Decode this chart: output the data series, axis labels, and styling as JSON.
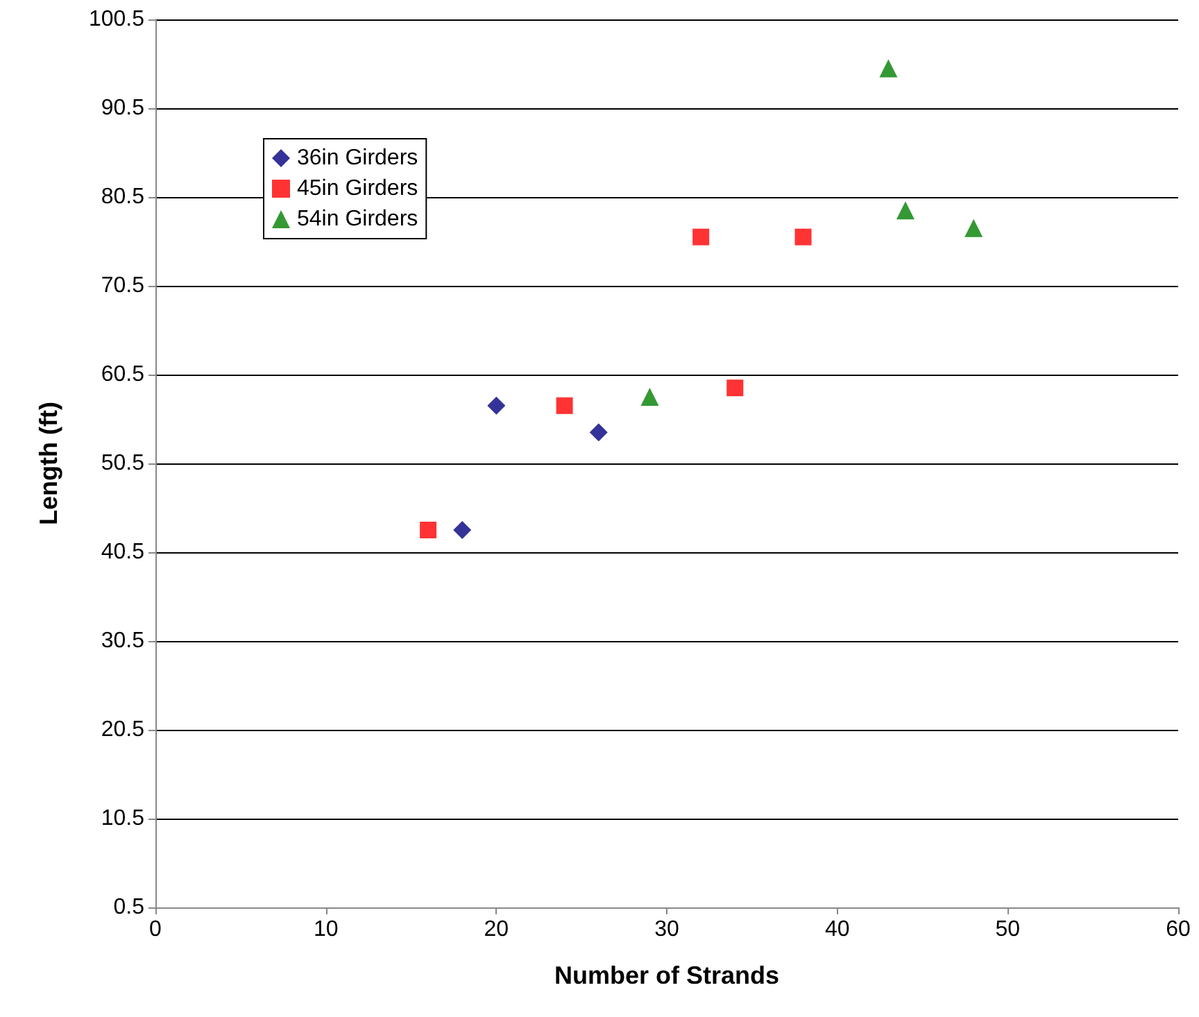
{
  "chart_data": {
    "type": "scatter",
    "xlabel": "Number of Strands",
    "ylabel": "Length (ft)",
    "xlim": [
      0,
      60
    ],
    "xticks": [
      0,
      10,
      20,
      30,
      40,
      50,
      60
    ],
    "ylim": [
      0.5,
      100.5
    ],
    "yticks": [
      0.5,
      10.5,
      20.5,
      30.5,
      40.5,
      50.5,
      60.5,
      70.5,
      80.5,
      90.5,
      100.5
    ],
    "grid": "y",
    "legend": "top left",
    "series": [
      {
        "name": "36in Girders",
        "color": "#000080",
        "marker": "diamond",
        "x": [
          18,
          20,
          26
        ],
        "values": [
          43,
          57,
          54
        ]
      },
      {
        "name": "45in Girders",
        "color": "#ff0000",
        "marker": "square",
        "x": [
          16,
          24,
          32,
          34,
          38
        ],
        "values": [
          43,
          57,
          76,
          59,
          76
        ]
      },
      {
        "name": "54in Girders",
        "color": "#008000",
        "marker": "triangle",
        "x": [
          29,
          43,
          44,
          48
        ],
        "values": [
          58,
          95,
          79,
          77
        ]
      }
    ]
  }
}
